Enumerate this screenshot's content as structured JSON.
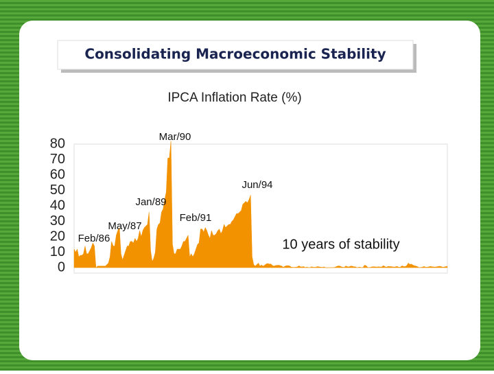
{
  "chart_data": {
    "type": "area",
    "slide_title": "Consolidating Macroeconomic Stability",
    "title": "IPCA Inflation Rate (%)",
    "color": "#f39200",
    "ylim": [
      0,
      80
    ],
    "yticks": [
      0,
      10,
      20,
      30,
      40,
      50,
      60,
      70,
      80
    ],
    "annotations": [
      "Mar/90",
      "Jun/94",
      "Jan/89",
      "Feb/91",
      "May/87",
      "Feb/86",
      "10 years of stability"
    ],
    "values": [
      12,
      10,
      12,
      7,
      8,
      8,
      9,
      14,
      9,
      9,
      11,
      13,
      16,
      14,
      0,
      1,
      1,
      1,
      1,
      1,
      1,
      2,
      3,
      7,
      17,
      14,
      14,
      21,
      24,
      26,
      9,
      5,
      8,
      11,
      14,
      14,
      17,
      17,
      16,
      19,
      17,
      19,
      24,
      20,
      24,
      26,
      27,
      28,
      36,
      11,
      4,
      6,
      10,
      25,
      28,
      29,
      36,
      38,
      44,
      49,
      71,
      71,
      82,
      15,
      9,
      9,
      12,
      12,
      12,
      14,
      17,
      17,
      19,
      21,
      7,
      9,
      7,
      9,
      12,
      15,
      16,
      25,
      25,
      23,
      26,
      24,
      21,
      19,
      24,
      21,
      21,
      22,
      24,
      25,
      22,
      24,
      28,
      26,
      27,
      28,
      28,
      30,
      31,
      33,
      35,
      35,
      36,
      37,
      41,
      42,
      43,
      42,
      44,
      47,
      7,
      2,
      1,
      2,
      3,
      1,
      1.7,
      1.0,
      1.6,
      2.4,
      2.7,
      2.3,
      2.4,
      1.4,
      1.0,
      1.4,
      1.5,
      1.6,
      1.3,
      1.0,
      0.3,
      0.9,
      1.3,
      1.3,
      1.1,
      0.4,
      0.2,
      0.2,
      0.3,
      0.5,
      1.2,
      0.5,
      0.5,
      0.7,
      0.1,
      0.4,
      0.1,
      0.0,
      0.6,
      0.3,
      0.2,
      0.4,
      0.7,
      0.5,
      0.3,
      0.2,
      0.5,
      0.0,
      0.0,
      0.0,
      0.0,
      0.0,
      0.0,
      0.3,
      0.7,
      1.1,
      1.1,
      0.6,
      0.3,
      0.2,
      1.1,
      0.6,
      0.5,
      1.0,
      1.0,
      0.6,
      0.6,
      0.1,
      0.2,
      0.4,
      0.0,
      0.2,
      1.6,
      1.3,
      0.2,
      0.1,
      0.3,
      0.6,
      0.6,
      0.5,
      0.4,
      0.6,
      0.4,
      0.5,
      1.3,
      0.7,
      0.3,
      0.8,
      0.7,
      0.7,
      0.5,
      0.4,
      0.6,
      0.8,
      0.2,
      0.4,
      1.2,
      0.7,
      0.7,
      1.3,
      3.0,
      2.1,
      2.3,
      1.6,
      1.2,
      1.0,
      0.6,
      0.0,
      0.2,
      0.3,
      0.8,
      0.3,
      0.3,
      0.5,
      0.8,
      0.6,
      0.5,
      0.4,
      0.5,
      0.7,
      0.9,
      0.7,
      0.3,
      0.4,
      0.7,
      0.9
    ]
  }
}
